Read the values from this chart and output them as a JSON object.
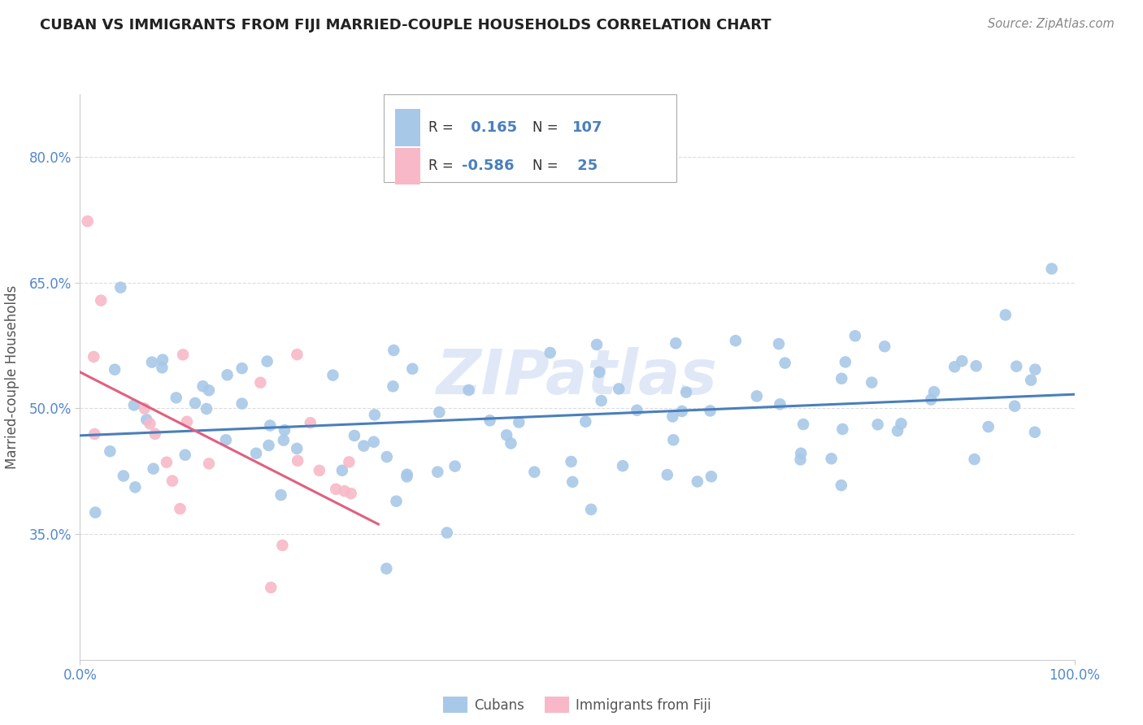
{
  "title": "CUBAN VS IMMIGRANTS FROM FIJI MARRIED-COUPLE HOUSEHOLDS CORRELATION CHART",
  "source": "Source: ZipAtlas.com",
  "ylabel": "Married-couple Households",
  "xlim": [
    0.0,
    1.0
  ],
  "ylim": [
    0.2,
    0.875
  ],
  "ytick_positions": [
    0.35,
    0.5,
    0.65,
    0.8
  ],
  "ytick_labels": [
    "35.0%",
    "50.0%",
    "65.0%",
    "80.0%"
  ],
  "xtick_positions": [
    0.0,
    1.0
  ],
  "xtick_labels": [
    "0.0%",
    "100.0%"
  ],
  "R_cuban": 0.165,
  "N_cuban": 107,
  "R_fiji": -0.586,
  "N_fiji": 25,
  "blue_dot": "#a8c8e8",
  "pink_dot": "#f8b8c8",
  "line_blue": "#4a7fbb",
  "line_pink": "#e06080",
  "title_color": "#222222",
  "source_color": "#888888",
  "ylabel_color": "#555555",
  "tick_color": "#5588cc",
  "grid_color": "#dddddd",
  "legend_text_dark": "#333333",
  "legend_num_color": "#4a7fbb",
  "watermark_color": "#e0e8f8"
}
